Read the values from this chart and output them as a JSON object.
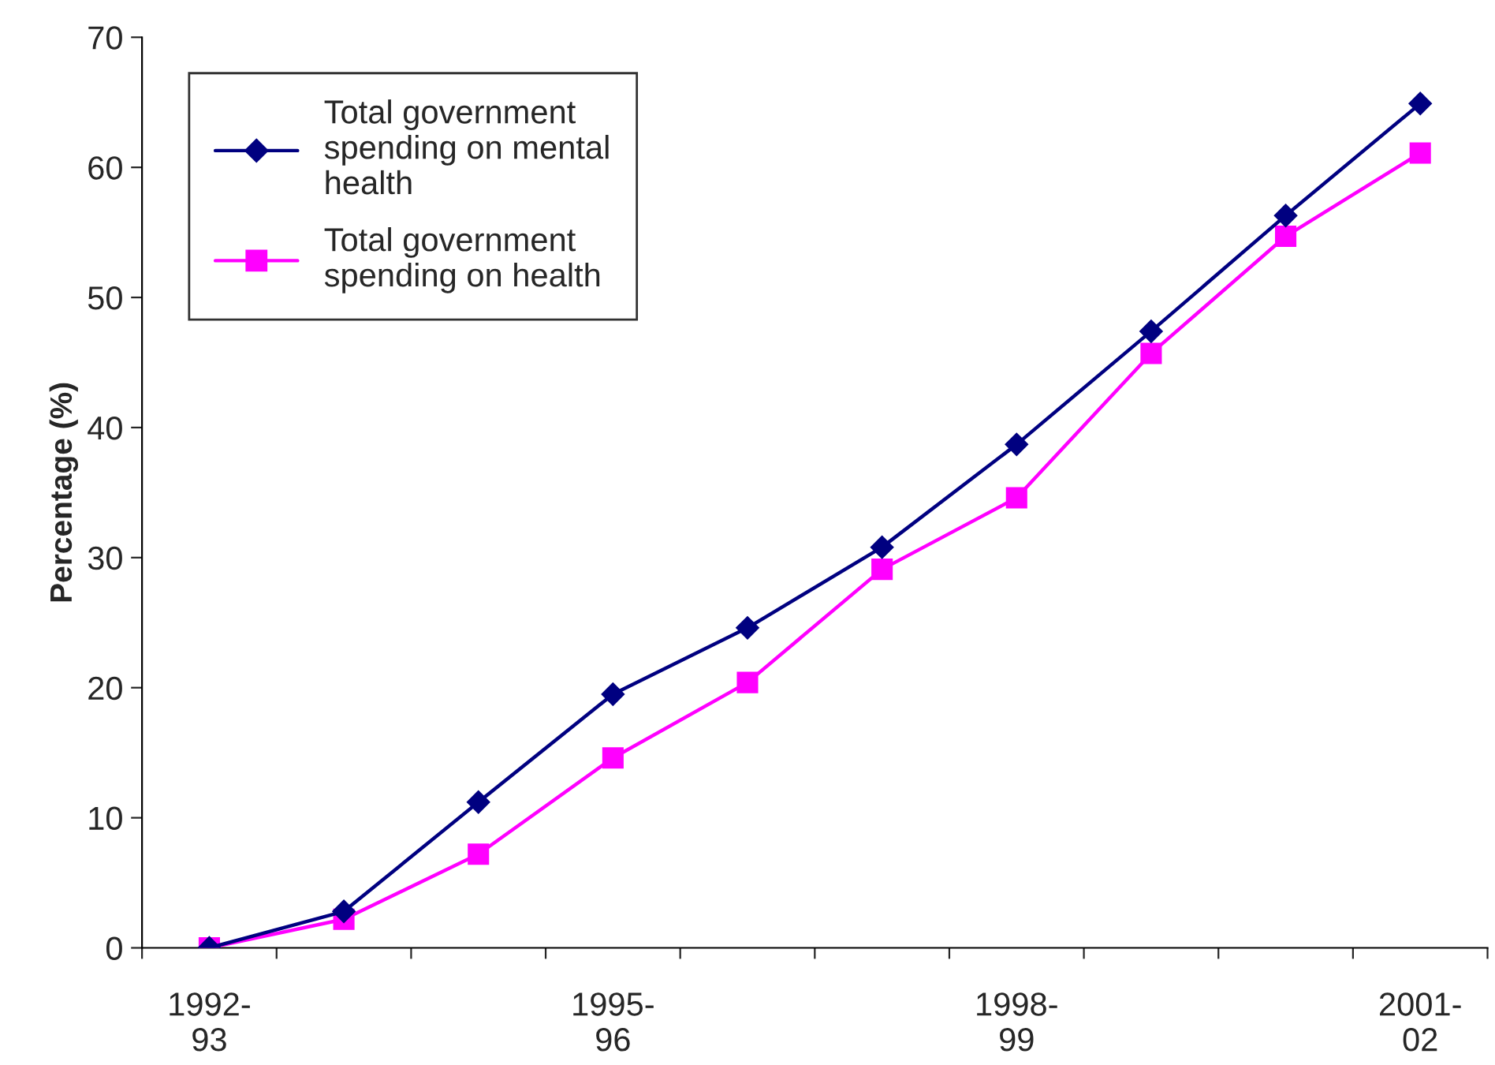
{
  "chart_data": {
    "type": "line",
    "ylabel": "Percentage (%)",
    "categories": [
      "1992-\n93",
      null,
      null,
      "1995-\n96",
      null,
      null,
      "1998-\n99",
      null,
      null,
      "2001-\n02"
    ],
    "series": [
      {
        "name": "Total government spending on mental health",
        "color": "#000080",
        "marker": "diamond",
        "values": [
          0,
          2.8,
          11.2,
          19.5,
          24.6,
          30.8,
          38.7,
          47.4,
          56.3,
          64.9
        ]
      },
      {
        "name": "Total government spending on health",
        "color": "#ff00ff",
        "marker": "square",
        "values": [
          0,
          2.2,
          7.2,
          14.6,
          20.4,
          29.1,
          34.6,
          45.7,
          54.7,
          61.1
        ]
      }
    ],
    "ylim": [
      0,
      70
    ],
    "yticks": [
      0,
      10,
      20,
      30,
      40,
      50,
      60,
      70
    ],
    "grid": false,
    "legend": "top left",
    "line_style": "solid"
  }
}
